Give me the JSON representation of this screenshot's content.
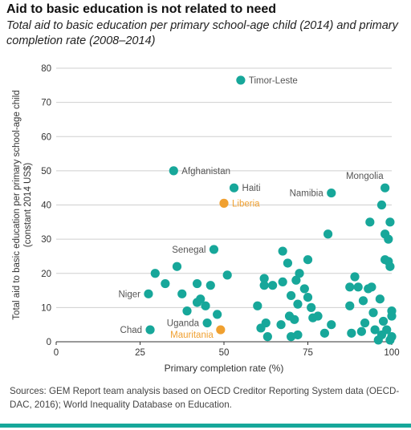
{
  "title": "Aid to basic education is not related to need",
  "subtitle": "Total aid to basic education per primary school-age child (2014) and primary completion rate (2008–2014)",
  "sources": "Sources: GEM Report team analysis based on OECD Creditor Reporting System data (OECD-DAC, 2016); World Inequality Database on Education.",
  "colors": {
    "teal": "#17a79a",
    "orange": "#f0a030",
    "grid": "#cfcfcf",
    "axis": "#333333",
    "label": "#555555",
    "rule": "#17a79a"
  },
  "chart_data": {
    "type": "scatter",
    "title": "Aid to basic education is not related to need",
    "xlabel": "Primary completion rate (%)",
    "ylabel": "Total aid to basic education per primary school-age child (constant 2014 US$)",
    "xlim": [
      0,
      100
    ],
    "ylim": [
      0,
      80
    ],
    "xticks": [
      0,
      25,
      50,
      75,
      100
    ],
    "yticks": [
      0,
      10,
      20,
      30,
      40,
      50,
      60,
      70,
      80
    ],
    "grid": "horizontal",
    "series": [
      {
        "color": "#17a79a",
        "points": [
          [
            55,
            76.5
          ],
          [
            35,
            50
          ],
          [
            53,
            45
          ],
          [
            82,
            43.5
          ],
          [
            98,
            45
          ],
          [
            47,
            27
          ],
          [
            27.5,
            14
          ],
          [
            28,
            3.5
          ],
          [
            29.5,
            20
          ],
          [
            32.5,
            17
          ],
          [
            36,
            22
          ],
          [
            37.5,
            14
          ],
          [
            39,
            9
          ],
          [
            42,
            17
          ],
          [
            42,
            11.5
          ],
          [
            43,
            12.5
          ],
          [
            44.5,
            10.5
          ],
          [
            45,
            5.5
          ],
          [
            46,
            16.5
          ],
          [
            48,
            8
          ],
          [
            51,
            19.5
          ],
          [
            60,
            10.5
          ],
          [
            61,
            4
          ],
          [
            62,
            18.5
          ],
          [
            62,
            16.5
          ],
          [
            62.5,
            5.5
          ],
          [
            63,
            1.5
          ],
          [
            64.5,
            16.5
          ],
          [
            67,
            5
          ],
          [
            67.5,
            26.5
          ],
          [
            67.5,
            17.5
          ],
          [
            69,
            23
          ],
          [
            69.5,
            7.5
          ],
          [
            70,
            13.5
          ],
          [
            70,
            1.5
          ],
          [
            71,
            6.5
          ],
          [
            71.5,
            18
          ],
          [
            72,
            2
          ],
          [
            72,
            11
          ],
          [
            72.5,
            20
          ],
          [
            74,
            15.5
          ],
          [
            75,
            24
          ],
          [
            75,
            13
          ],
          [
            76,
            10
          ],
          [
            76.5,
            7
          ],
          [
            78,
            7.5
          ],
          [
            80,
            2.5
          ],
          [
            81,
            31.5
          ],
          [
            82,
            5
          ],
          [
            87.5,
            16
          ],
          [
            87.5,
            10.5
          ],
          [
            88,
            2.5
          ],
          [
            89,
            19
          ],
          [
            90,
            16
          ],
          [
            91,
            3
          ],
          [
            91.5,
            12
          ],
          [
            92,
            5.5
          ],
          [
            93,
            15.5
          ],
          [
            93.5,
            35
          ],
          [
            94,
            16
          ],
          [
            94.5,
            8.5
          ],
          [
            95,
            3.5
          ],
          [
            96,
            0.5
          ],
          [
            96.5,
            12.5
          ],
          [
            97,
            2
          ],
          [
            97,
            40
          ],
          [
            97.5,
            6
          ],
          [
            98,
            24
          ],
          [
            98,
            31.5
          ],
          [
            98.5,
            3.5
          ],
          [
            99,
            23.5
          ],
          [
            99,
            30
          ],
          [
            99.5,
            35
          ],
          [
            99.5,
            22
          ],
          [
            99.5,
            0.5
          ],
          [
            100,
            9
          ],
          [
            100,
            7.5
          ],
          [
            100,
            1.5
          ]
        ]
      },
      {
        "color": "#f0a030",
        "points": [
          [
            50,
            40.5
          ],
          [
            49,
            3.5
          ]
        ]
      }
    ],
    "annotations": [
      {
        "text": "Timor-Leste",
        "x": 55,
        "y": 76.5,
        "side": "right",
        "color": "#555555"
      },
      {
        "text": "Afghanistan",
        "x": 35,
        "y": 50,
        "side": "right",
        "color": "#555555"
      },
      {
        "text": "Haiti",
        "x": 53,
        "y": 45,
        "side": "right",
        "color": "#555555"
      },
      {
        "text": "Liberia",
        "x": 50,
        "y": 40.5,
        "side": "right",
        "color": "#f0a030"
      },
      {
        "text": "Mongolia",
        "x": 98,
        "y": 45,
        "side": "left-above",
        "color": "#555555"
      },
      {
        "text": "Namibia",
        "x": 82,
        "y": 43.5,
        "side": "left",
        "color": "#555555"
      },
      {
        "text": "Senegal",
        "x": 47,
        "y": 27,
        "side": "left",
        "color": "#555555"
      },
      {
        "text": "Niger",
        "x": 27.5,
        "y": 14,
        "side": "left",
        "color": "#555555"
      },
      {
        "text": "Chad",
        "x": 28,
        "y": 3.5,
        "side": "left",
        "color": "#555555"
      },
      {
        "text": "Uganda",
        "x": 45,
        "y": 5.5,
        "side": "left",
        "color": "#555555"
      },
      {
        "text": "Mauritania",
        "x": 49,
        "y": 3.5,
        "side": "left-below",
        "color": "#f0a030"
      }
    ]
  }
}
